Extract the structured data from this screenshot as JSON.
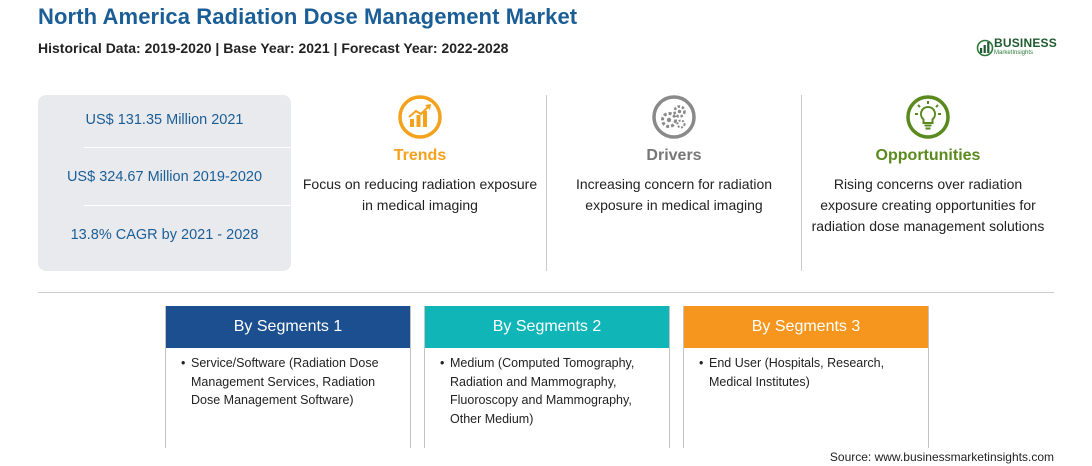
{
  "header": {
    "title": "North America Radiation Dose Management Market",
    "subtitle": "Historical Data: 2019-2020 | Base Year: 2021 | Forecast Year: 2022-2028"
  },
  "logo": {
    "main": "BUSINESS",
    "sub": "MarketInsights"
  },
  "stats": [
    "US$ 131.35 Million 2021",
    "US$ 324.67 Million 2019-2020",
    "13.8% CAGR by 2021 - 2028"
  ],
  "features": [
    {
      "title": "Trends",
      "description": "Focus on reducing radiation exposure in medical imaging",
      "icon": "trend-chart-icon",
      "color": "#f4a11c"
    },
    {
      "title": "Drivers",
      "description": "Increasing concern for radiation exposure in medical imaging",
      "icon": "gears-icon",
      "color": "#8a8a8a"
    },
    {
      "title": "Opportunities",
      "description": "Rising concerns over radiation exposure creating opportunities for radiation dose management solutions",
      "icon": "lightbulb-icon",
      "color": "#5a8a1e"
    }
  ],
  "segments": [
    {
      "heading": "By Segments 1",
      "color": "#1b4f8f",
      "items": [
        "Service/Software (Radiation Dose Management Services, Radiation Dose Management Software)"
      ]
    },
    {
      "heading": "By Segments 2",
      "color": "#10b5b8",
      "items": [
        "Medium (Computed Tomography, Radiation and Mammography, Fluoroscopy and Mammography, Other Medium)"
      ]
    },
    {
      "heading": "By Segments 3",
      "color": "#f6961e",
      "items": [
        "End User (Hospitals, Research, Medical Institutes)"
      ]
    }
  ],
  "source": "Source: www.businessmarketinsights.com"
}
